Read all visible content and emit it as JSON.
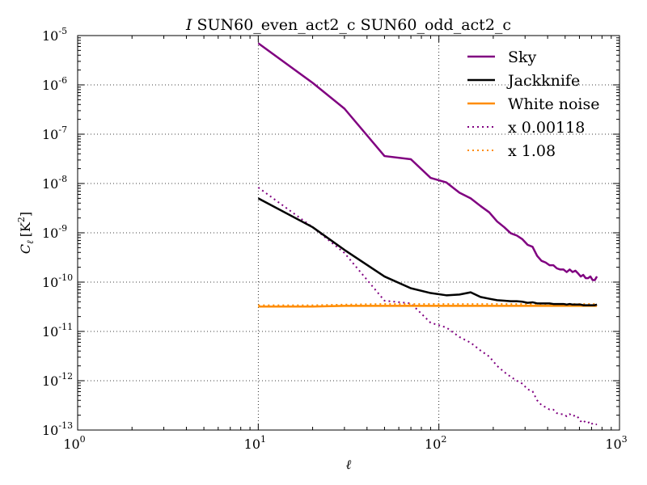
{
  "chart_data": {
    "type": "line",
    "title": "I SUN60_even_act2_c SUN60_odd_act2_c",
    "title_prefix": "I",
    "title_rest": "SUN60_even_act2_c SUN60_odd_act2_c",
    "xlabel": "ℓ",
    "ylabel": "C_ℓ [K²]",
    "xscale": "log",
    "yscale": "log",
    "xlim": [
      1,
      1000
    ],
    "ylim": [
      1e-13,
      1e-05
    ],
    "x_ticks": [
      {
        "value": 1,
        "base": "10",
        "exp": "0"
      },
      {
        "value": 10,
        "base": "10",
        "exp": "1"
      },
      {
        "value": 100,
        "base": "10",
        "exp": "2"
      },
      {
        "value": 1000,
        "base": "10",
        "exp": "3"
      }
    ],
    "y_ticks": [
      {
        "value": 1e-13,
        "base": "10",
        "exp": "-13"
      },
      {
        "value": 1e-12,
        "base": "10",
        "exp": "-12"
      },
      {
        "value": 1e-11,
        "base": "10",
        "exp": "-11"
      },
      {
        "value": 1e-10,
        "base": "10",
        "exp": "-10"
      },
      {
        "value": 1e-09,
        "base": "10",
        "exp": "-9"
      },
      {
        "value": 1e-08,
        "base": "10",
        "exp": "-8"
      },
      {
        "value": 1e-07,
        "base": "10",
        "exp": "-7"
      },
      {
        "value": 1e-06,
        "base": "10",
        "exp": "-6"
      },
      {
        "value": 1e-05,
        "base": "10",
        "exp": "-5"
      }
    ],
    "grid": true,
    "legend_position": "top-right",
    "series": [
      {
        "name": "Sky",
        "color": "#800080",
        "style": "solid",
        "x": [
          10,
          20,
          30,
          50,
          70,
          90,
          110,
          130,
          150,
          170,
          190,
          210,
          230,
          250,
          270,
          290,
          310,
          330,
          350,
          370,
          390,
          410,
          430,
          450,
          470,
          490,
          510,
          530,
          550,
          570,
          590,
          610,
          630,
          650,
          670,
          690,
          710,
          730,
          750
        ],
        "y": [
          7e-06,
          1.1e-06,
          3.3e-07,
          3.6e-08,
          3.1e-08,
          1.3e-08,
          1.05e-08,
          6.5e-09,
          5e-09,
          3.5e-09,
          2.6e-09,
          1.7e-09,
          1.3e-09,
          9.8e-10,
          8.8e-10,
          7.4e-10,
          5.7e-10,
          5.2e-10,
          3.4e-10,
          2.7e-10,
          2.5e-10,
          2.2e-10,
          2.2e-10,
          1.9e-10,
          1.8e-10,
          1.8e-10,
          1.6e-10,
          1.8e-10,
          1.6e-10,
          1.7e-10,
          1.5e-10,
          1.3e-10,
          1.4e-10,
          1.2e-10,
          1.2e-10,
          1.3e-10,
          1.1e-10,
          1.1e-10,
          1.3e-10
        ]
      },
      {
        "name": "Jackknife",
        "color": "#000000",
        "style": "solid",
        "x": [
          10,
          20,
          30,
          50,
          70,
          90,
          110,
          130,
          150,
          170,
          190,
          210,
          230,
          250,
          270,
          290,
          310,
          330,
          350,
          370,
          390,
          410,
          430,
          450,
          470,
          490,
          510,
          530,
          550,
          570,
          590,
          610,
          630,
          650,
          670,
          690,
          710,
          730,
          750
        ],
        "y": [
          5e-09,
          1.3e-09,
          4.5e-10,
          1.3e-10,
          7.5e-11,
          6e-11,
          5.4e-11,
          5.6e-11,
          6.2e-11,
          5e-11,
          4.6e-11,
          4.3e-11,
          4.2e-11,
          4.1e-11,
          4.1e-11,
          4e-11,
          3.8e-11,
          3.9e-11,
          3.7e-11,
          3.7e-11,
          3.7e-11,
          3.7e-11,
          3.6e-11,
          3.6e-11,
          3.6e-11,
          3.6e-11,
          3.5e-11,
          3.6e-11,
          3.5e-11,
          3.5e-11,
          3.5e-11,
          3.5e-11,
          3.4e-11,
          3.4e-11,
          3.4e-11,
          3.4e-11,
          3.4e-11,
          3.4e-11,
          3.5e-11
        ]
      },
      {
        "name": "White noise",
        "color": "#ff8c00",
        "style": "solid",
        "x": [
          10,
          20,
          30,
          50,
          70,
          90,
          110,
          130,
          150,
          170,
          190,
          210,
          230,
          250,
          270,
          290,
          310,
          330,
          350,
          370,
          390,
          410,
          430,
          450,
          470,
          490,
          510,
          530,
          550,
          570,
          590,
          610,
          630,
          650,
          670,
          690,
          710,
          730,
          750
        ],
        "y": [
          3.2e-11,
          3.2e-11,
          3.3e-11,
          3.3e-11,
          3.3e-11,
          3.3e-11,
          3.3e-11,
          3.3e-11,
          3.3e-11,
          3.3e-11,
          3.3e-11,
          3.3e-11,
          3.3e-11,
          3.3e-11,
          3.3e-11,
          3.3e-11,
          3.3e-11,
          3.3e-11,
          3.3e-11,
          3.3e-11,
          3.3e-11,
          3.3e-11,
          3.3e-11,
          3.3e-11,
          3.3e-11,
          3.3e-11,
          3.3e-11,
          3.3e-11,
          3.3e-11,
          3.3e-11,
          3.3e-11,
          3.3e-11,
          3.3e-11,
          3.3e-11,
          3.3e-11,
          3.3e-11,
          3.3e-11,
          3.3e-11,
          3.3e-11
        ]
      },
      {
        "name": "x 0.00118",
        "color": "#800080",
        "style": "dotted",
        "x": [
          10,
          20,
          30,
          50,
          70,
          90,
          110,
          130,
          150,
          170,
          190,
          210,
          230,
          250,
          270,
          290,
          310,
          330,
          350,
          370,
          390,
          410,
          430,
          450,
          470,
          490,
          510,
          530,
          550,
          570,
          590,
          610,
          630,
          650,
          670,
          690,
          710,
          730,
          750
        ],
        "y": [
          8.3e-09,
          1.3e-09,
          3.9e-10,
          4.2e-11,
          3.7e-11,
          1.5e-11,
          1.2e-11,
          7.7e-12,
          5.9e-12,
          4.1e-12,
          3.1e-12,
          2e-12,
          1.5e-12,
          1.2e-12,
          1e-12,
          8.7e-13,
          6.7e-13,
          6.1e-13,
          4e-13,
          3.2e-13,
          2.9e-13,
          2.6e-13,
          2.6e-13,
          2.2e-13,
          2.1e-13,
          2.1e-13,
          1.9e-13,
          2.1e-13,
          1.9e-13,
          2e-13,
          1.8e-13,
          1.5e-13,
          1.6e-13,
          1.4e-13,
          1.4e-13,
          1.5e-13,
          1.3e-13,
          1.3e-13,
          1.3e-13
        ]
      },
      {
        "name": "x 1.08",
        "color": "#ff8c00",
        "style": "dotted",
        "x": [
          10,
          20,
          30,
          50,
          70,
          90,
          110,
          130,
          150,
          170,
          190,
          210,
          230,
          250,
          270,
          290,
          310,
          330,
          350,
          370,
          390,
          410,
          430,
          450,
          470,
          490,
          510,
          530,
          550,
          570,
          590,
          610,
          630,
          650,
          670,
          690,
          710,
          730,
          750
        ],
        "y": [
          3.4e-11,
          3.4e-11,
          3.5e-11,
          3.6e-11,
          3.6e-11,
          3.6e-11,
          3.6e-11,
          3.6e-11,
          3.6e-11,
          3.6e-11,
          3.6e-11,
          3.6e-11,
          3.6e-11,
          3.6e-11,
          3.6e-11,
          3.6e-11,
          3.6e-11,
          3.6e-11,
          3.6e-11,
          3.6e-11,
          3.6e-11,
          3.6e-11,
          3.6e-11,
          3.6e-11,
          3.6e-11,
          3.6e-11,
          3.6e-11,
          3.6e-11,
          3.6e-11,
          3.6e-11,
          3.6e-11,
          3.6e-11,
          3.6e-11,
          3.6e-11,
          3.6e-11,
          3.6e-11,
          3.6e-11,
          3.6e-11,
          3.6e-11
        ]
      }
    ]
  }
}
